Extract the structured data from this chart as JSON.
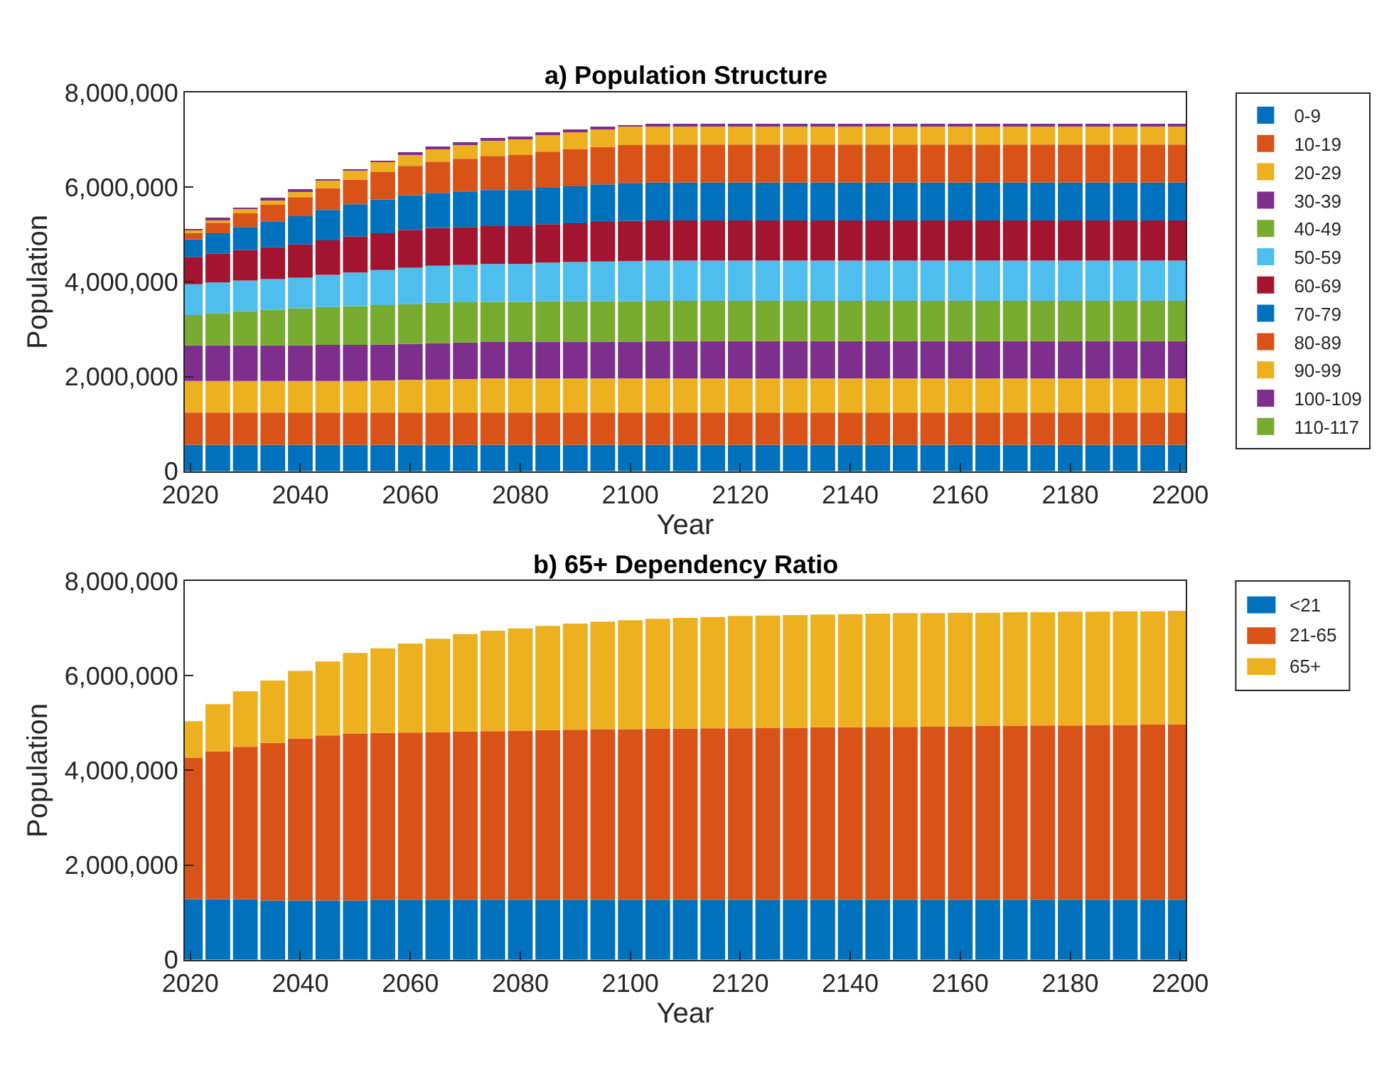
{
  "chart_data": [
    {
      "type": "bar",
      "stacked": true,
      "title": "a) Population Structure",
      "xlabel": "Year",
      "ylabel": "Population",
      "legend": "top right",
      "x": [
        2020,
        2025,
        2030,
        2035,
        2040,
        2045,
        2050,
        2055,
        2060,
        2065,
        2070,
        2075,
        2080,
        2085,
        2090,
        2095,
        2100,
        2105,
        2110,
        2115,
        2120,
        2125,
        2130,
        2135,
        2140,
        2145,
        2150,
        2155,
        2160,
        2165,
        2170,
        2175,
        2180,
        2185,
        2190,
        2195,
        2200
      ],
      "xlim": [
        2019,
        2201
      ],
      "xticks": [
        2020,
        2040,
        2060,
        2080,
        2100,
        2120,
        2140,
        2160,
        2180,
        2200
      ],
      "ylim": [
        0,
        8000000
      ],
      "yticks": [
        {
          "value": 0,
          "label": "0"
        },
        {
          "value": 2000000,
          "label": "2,000,000"
        },
        {
          "value": 4000000,
          "label": "4,000,000"
        },
        {
          "value": 6000000,
          "label": "6,000,000"
        },
        {
          "value": 8000000,
          "label": "8,000,000"
        }
      ],
      "series": [
        {
          "name": "0-9",
          "color": "#0072bd",
          "values": [
            560000,
            560000,
            560000,
            560000,
            560000,
            560000,
            560000,
            560000,
            560000,
            560000,
            560000,
            560000,
            560000,
            560000,
            560000,
            560000,
            560000,
            560000,
            560000,
            560000,
            560000,
            560000,
            560000,
            560000,
            560000,
            560000,
            560000,
            560000,
            560000,
            560000,
            560000,
            560000,
            560000,
            560000,
            560000,
            560000,
            560000
          ]
        },
        {
          "name": "10-19",
          "color": "#d95319",
          "values": [
            680000,
            680000,
            680000,
            680000,
            680000,
            680000,
            680000,
            680000,
            680000,
            680000,
            680000,
            680000,
            680000,
            680000,
            680000,
            680000,
            680000,
            680000,
            680000,
            680000,
            680000,
            680000,
            680000,
            680000,
            680000,
            680000,
            680000,
            680000,
            680000,
            680000,
            680000,
            680000,
            680000,
            680000,
            680000,
            680000,
            680000
          ]
        },
        {
          "name": "20-29",
          "color": "#edb120",
          "values": [
            670000,
            670000,
            670000,
            670000,
            670000,
            670000,
            670000,
            680000,
            690000,
            700000,
            710000,
            720000,
            720000,
            720000,
            720000,
            720000,
            720000,
            720000,
            720000,
            720000,
            720000,
            720000,
            720000,
            720000,
            720000,
            720000,
            720000,
            720000,
            720000,
            720000,
            720000,
            720000,
            720000,
            720000,
            720000,
            720000,
            720000
          ]
        },
        {
          "name": "30-39",
          "color": "#7e2f8e",
          "values": [
            750000,
            750000,
            750000,
            750000,
            750000,
            760000,
            760000,
            760000,
            760000,
            770000,
            770000,
            770000,
            770000,
            780000,
            780000,
            780000,
            780000,
            790000,
            790000,
            790000,
            790000,
            790000,
            790000,
            790000,
            790000,
            790000,
            790000,
            790000,
            790000,
            790000,
            790000,
            790000,
            790000,
            790000,
            790000,
            790000,
            790000
          ]
        },
        {
          "name": "40-49",
          "color": "#77ac30",
          "values": [
            640000,
            680000,
            720000,
            750000,
            780000,
            800000,
            820000,
            830000,
            840000,
            850000,
            850000,
            850000,
            850000,
            850000,
            850000,
            850000,
            850000,
            850000,
            850000,
            850000,
            850000,
            850000,
            850000,
            850000,
            850000,
            850000,
            850000,
            850000,
            850000,
            850000,
            850000,
            850000,
            850000,
            850000,
            850000,
            850000,
            850000
          ]
        },
        {
          "name": "50-59",
          "color": "#4dbeee",
          "values": [
            650000,
            650000,
            650000,
            650000,
            650000,
            680000,
            710000,
            740000,
            770000,
            780000,
            790000,
            800000,
            800000,
            820000,
            830000,
            840000,
            850000,
            850000,
            850000,
            850000,
            850000,
            850000,
            850000,
            850000,
            850000,
            850000,
            850000,
            850000,
            850000,
            850000,
            850000,
            850000,
            850000,
            850000,
            850000,
            850000,
            850000
          ]
        },
        {
          "name": "60-69",
          "color": "#a2142f",
          "values": [
            580000,
            610000,
            640000,
            670000,
            700000,
            730000,
            760000,
            780000,
            800000,
            800000,
            800000,
            800000,
            800000,
            810000,
            820000,
            840000,
            850000,
            850000,
            850000,
            850000,
            850000,
            850000,
            850000,
            850000,
            850000,
            850000,
            850000,
            850000,
            850000,
            850000,
            850000,
            850000,
            850000,
            850000,
            850000,
            850000,
            850000
          ]
        },
        {
          "name": "70-79",
          "color": "#0072bd",
          "values": [
            370000,
            430000,
            490000,
            550000,
            600000,
            640000,
            680000,
            710000,
            730000,
            740000,
            750000,
            760000,
            760000,
            770000,
            780000,
            790000,
            800000,
            800000,
            800000,
            800000,
            800000,
            800000,
            800000,
            800000,
            800000,
            800000,
            800000,
            800000,
            800000,
            800000,
            800000,
            800000,
            800000,
            800000,
            800000,
            800000,
            800000
          ]
        },
        {
          "name": "80-89",
          "color": "#d95319",
          "values": [
            150000,
            220000,
            290000,
            350000,
            400000,
            460000,
            520000,
            580000,
            620000,
            660000,
            690000,
            720000,
            740000,
            760000,
            780000,
            790000,
            800000,
            800000,
            800000,
            800000,
            800000,
            800000,
            800000,
            800000,
            800000,
            800000,
            800000,
            800000,
            800000,
            800000,
            800000,
            800000,
            800000,
            800000,
            800000,
            800000,
            800000
          ]
        },
        {
          "name": "90-99",
          "color": "#edb120",
          "values": [
            50000,
            70000,
            90000,
            110000,
            130000,
            160000,
            190000,
            220000,
            250000,
            280000,
            310000,
            330000,
            350000,
            360000,
            370000,
            380000,
            390000,
            400000,
            400000,
            400000,
            400000,
            400000,
            400000,
            400000,
            400000,
            400000,
            400000,
            400000,
            400000,
            400000,
            400000,
            400000,
            400000,
            400000,
            400000,
            400000,
            400000
          ]
        },
        {
          "name": "100-109",
          "color": "#7e2f8e",
          "values": [
            10000,
            10000,
            10000,
            10000,
            10000,
            10000,
            10000,
            10000,
            10000,
            20000,
            20000,
            20000,
            20000,
            20000,
            20000,
            20000,
            20000,
            30000,
            30000,
            30000,
            30000,
            30000,
            30000,
            30000,
            30000,
            30000,
            30000,
            30000,
            30000,
            30000,
            30000,
            30000,
            30000,
            30000,
            30000,
            30000,
            30000
          ]
        },
        {
          "name": "110-117",
          "color": "#77ac30",
          "values": [
            0,
            0,
            0,
            0,
            0,
            0,
            0,
            0,
            0,
            0,
            0,
            0,
            0,
            0,
            0,
            0,
            0,
            0,
            0,
            0,
            0,
            0,
            0,
            0,
            0,
            0,
            0,
            0,
            0,
            0,
            0,
            0,
            0,
            0,
            0,
            0,
            0
          ]
        }
      ]
    },
    {
      "type": "bar",
      "stacked": true,
      "title": "b) 65+ Dependency Ratio",
      "xlabel": "Year",
      "ylabel": "Population",
      "legend": "top right",
      "x": [
        2020,
        2025,
        2030,
        2035,
        2040,
        2045,
        2050,
        2055,
        2060,
        2065,
        2070,
        2075,
        2080,
        2085,
        2090,
        2095,
        2100,
        2105,
        2110,
        2115,
        2120,
        2125,
        2130,
        2135,
        2140,
        2145,
        2150,
        2155,
        2160,
        2165,
        2170,
        2175,
        2180,
        2185,
        2190,
        2195,
        2200
      ],
      "xlim": [
        2019,
        2201
      ],
      "xticks": [
        2020,
        2040,
        2060,
        2080,
        2100,
        2120,
        2140,
        2160,
        2180,
        2200
      ],
      "ylim": [
        0,
        8000000
      ],
      "yticks": [
        {
          "value": 0,
          "label": "0"
        },
        {
          "value": 2000000,
          "label": "2,000,000"
        },
        {
          "value": 4000000,
          "label": "4,000,000"
        },
        {
          "value": 6000000,
          "label": "6,000,000"
        },
        {
          "value": 8000000,
          "label": "8,000,000"
        }
      ],
      "series": [
        {
          "name": "<21",
          "color": "#0072bd",
          "values": [
            1280000,
            1280000,
            1280000,
            1250000,
            1250000,
            1250000,
            1250000,
            1270000,
            1270000,
            1270000,
            1270000,
            1270000,
            1270000,
            1270000,
            1270000,
            1270000,
            1270000,
            1270000,
            1270000,
            1270000,
            1270000,
            1270000,
            1270000,
            1270000,
            1270000,
            1270000,
            1270000,
            1270000,
            1270000,
            1270000,
            1270000,
            1270000,
            1270000,
            1270000,
            1270000,
            1270000,
            1270000
          ]
        },
        {
          "name": "21-65",
          "color": "#d95319",
          "values": [
            2990000,
            3120000,
            3220000,
            3330000,
            3420000,
            3490000,
            3530000,
            3520000,
            3530000,
            3540000,
            3550000,
            3560000,
            3570000,
            3580000,
            3590000,
            3600000,
            3600000,
            3610000,
            3610000,
            3620000,
            3620000,
            3630000,
            3630000,
            3640000,
            3640000,
            3650000,
            3650000,
            3660000,
            3660000,
            3670000,
            3670000,
            3680000,
            3680000,
            3690000,
            3690000,
            3700000,
            3700000
          ]
        },
        {
          "name": "65+",
          "color": "#edb120",
          "values": [
            770000,
            1000000,
            1170000,
            1320000,
            1430000,
            1560000,
            1700000,
            1790000,
            1880000,
            1970000,
            2060000,
            2120000,
            2160000,
            2200000,
            2240000,
            2270000,
            2300000,
            2320000,
            2340000,
            2350000,
            2370000,
            2370000,
            2380000,
            2380000,
            2390000,
            2390000,
            2400000,
            2390000,
            2400000,
            2390000,
            2400000,
            2390000,
            2400000,
            2390000,
            2400000,
            2390000,
            2400000
          ]
        }
      ]
    }
  ]
}
